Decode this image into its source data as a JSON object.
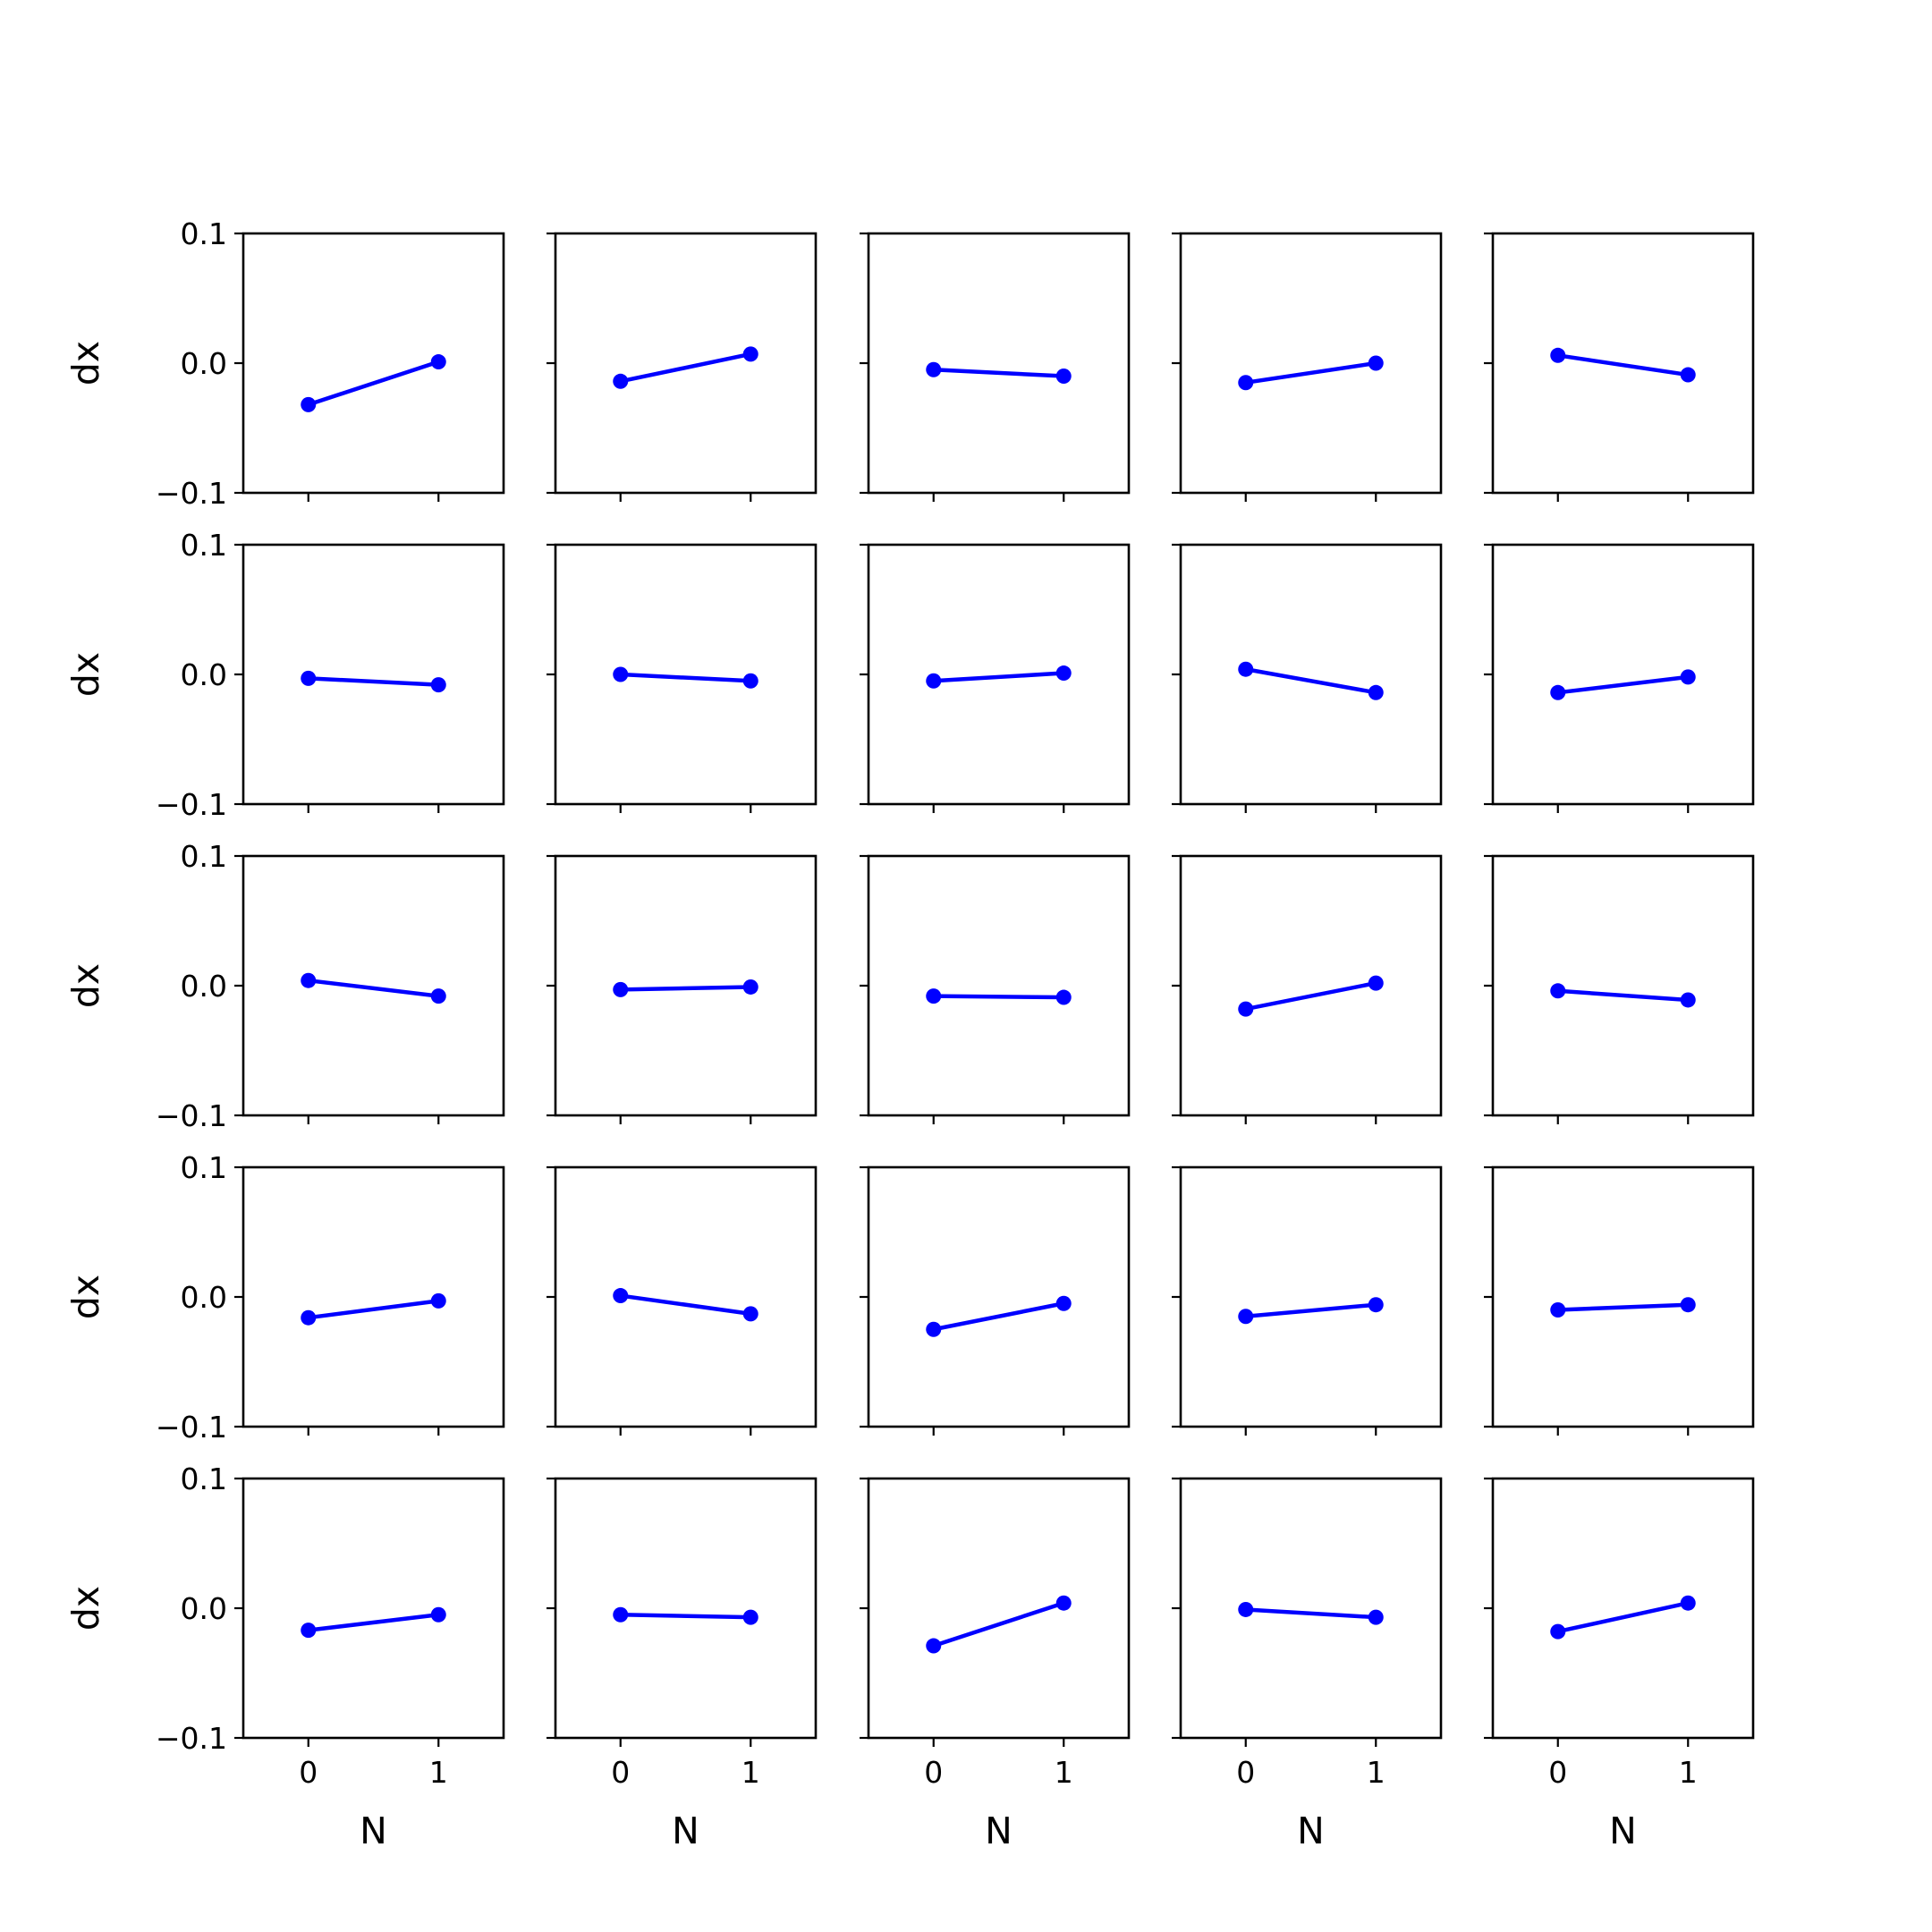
{
  "chart_data": {
    "type": "line",
    "layout": {
      "rows": 5,
      "cols": 5
    },
    "x_ticks": [
      0,
      1
    ],
    "x_tick_labels": [
      "0",
      "1"
    ],
    "y_ticks": [
      -0.1,
      0.0,
      0.1
    ],
    "y_tick_labels": [
      "−0.1",
      "0.0",
      "0.1"
    ],
    "xlabel": "N",
    "ylabel": "dx",
    "xlim": [
      -0.5,
      1.5
    ],
    "ylim": [
      -0.1,
      0.1
    ],
    "grid": false,
    "line_color": "#0000ff",
    "marker": "circle",
    "panels": [
      {
        "x": [
          0,
          1
        ],
        "y": [
          -0.032,
          0.001
        ]
      },
      {
        "x": [
          0,
          1
        ],
        "y": [
          -0.014,
          0.007
        ]
      },
      {
        "x": [
          0,
          1
        ],
        "y": [
          -0.005,
          -0.01
        ]
      },
      {
        "x": [
          0,
          1
        ],
        "y": [
          -0.015,
          0.0
        ]
      },
      {
        "x": [
          0,
          1
        ],
        "y": [
          0.006,
          -0.009
        ]
      },
      {
        "x": [
          0,
          1
        ],
        "y": [
          -0.003,
          -0.008
        ]
      },
      {
        "x": [
          0,
          1
        ],
        "y": [
          0.0,
          -0.005
        ]
      },
      {
        "x": [
          0,
          1
        ],
        "y": [
          -0.005,
          0.001
        ]
      },
      {
        "x": [
          0,
          1
        ],
        "y": [
          0.004,
          -0.014
        ]
      },
      {
        "x": [
          0,
          1
        ],
        "y": [
          -0.014,
          -0.002
        ]
      },
      {
        "x": [
          0,
          1
        ],
        "y": [
          0.004,
          -0.008
        ]
      },
      {
        "x": [
          0,
          1
        ],
        "y": [
          -0.003,
          -0.001
        ]
      },
      {
        "x": [
          0,
          1
        ],
        "y": [
          -0.008,
          -0.009
        ]
      },
      {
        "x": [
          0,
          1
        ],
        "y": [
          -0.018,
          0.002
        ]
      },
      {
        "x": [
          0,
          1
        ],
        "y": [
          -0.004,
          -0.011
        ]
      },
      {
        "x": [
          0,
          1
        ],
        "y": [
          -0.016,
          -0.003
        ]
      },
      {
        "x": [
          0,
          1
        ],
        "y": [
          0.001,
          -0.013
        ]
      },
      {
        "x": [
          0,
          1
        ],
        "y": [
          -0.025,
          -0.005
        ]
      },
      {
        "x": [
          0,
          1
        ],
        "y": [
          -0.015,
          -0.006
        ]
      },
      {
        "x": [
          0,
          1
        ],
        "y": [
          -0.01,
          -0.006
        ]
      },
      {
        "x": [
          0,
          1
        ],
        "y": [
          -0.017,
          -0.005
        ]
      },
      {
        "x": [
          0,
          1
        ],
        "y": [
          -0.005,
          -0.007
        ]
      },
      {
        "x": [
          0,
          1
        ],
        "y": [
          -0.029,
          0.004
        ]
      },
      {
        "x": [
          0,
          1
        ],
        "y": [
          -0.001,
          -0.007
        ]
      },
      {
        "x": [
          0,
          1
        ],
        "y": [
          -0.018,
          0.004
        ]
      }
    ]
  }
}
